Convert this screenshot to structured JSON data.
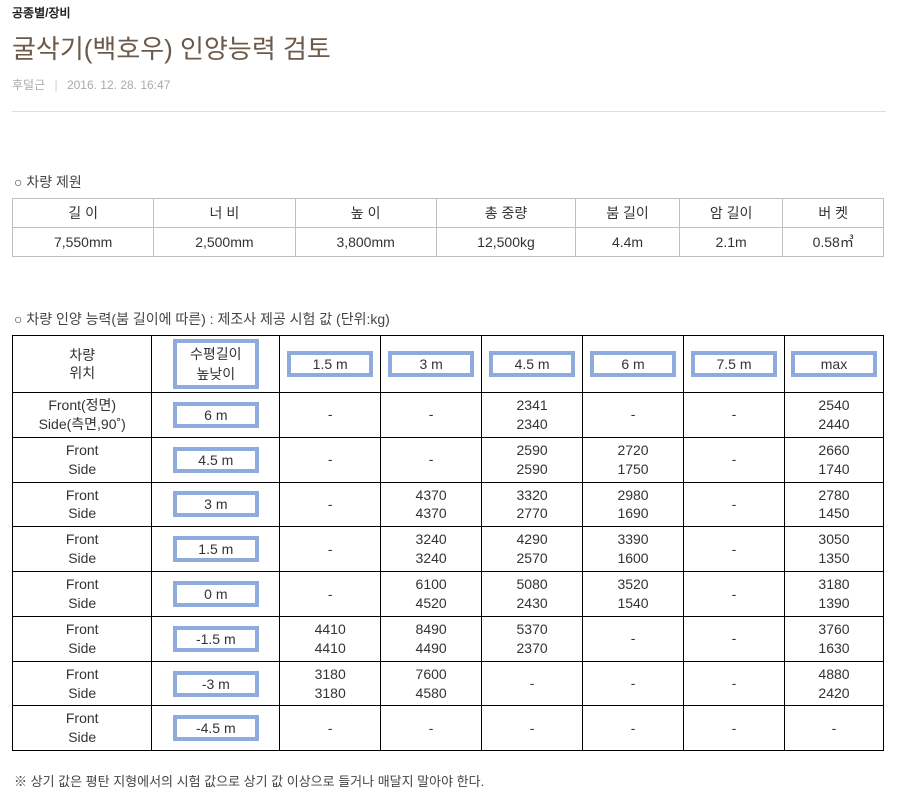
{
  "header": {
    "category": "공종별/장비",
    "title": "굴삭기(백호우) 인양능력 검토",
    "author": "후덜근",
    "timestamp": "2016. 12. 28. 16:47"
  },
  "spec": {
    "label": "○ 차량 제원",
    "columns": [
      "길 이",
      "너 비",
      "높 이",
      "총 중량",
      "붐 길이",
      "암 길이",
      "버 켓"
    ],
    "values": [
      "7,550mm",
      "2,500mm",
      "3,800mm",
      "12,500kg",
      "4.4m",
      "2.1m",
      "0.58㎥"
    ]
  },
  "lift": {
    "label": "○ 차량 인양 능력(붐 길이에 따른) : 제조사 제공 시험 값 (단위:kg)",
    "hdr_position": "차량\n위치",
    "hdr_height": "수평길이\n높낮이",
    "dist_headers": [
      "1.5 m",
      "3 m",
      "4.5 m",
      "6 m",
      "7.5 m",
      "max"
    ],
    "rows": [
      {
        "pos": "Front(정면)\nSide(측면,90˚)",
        "h": "6 m",
        "cells": [
          [
            "-",
            "-"
          ],
          [
            "-",
            "-"
          ],
          [
            "2341",
            "2340"
          ],
          [
            "-",
            "-"
          ],
          [
            "-",
            "-"
          ],
          [
            "2540",
            "2440"
          ]
        ]
      },
      {
        "pos": "Front\nSide",
        "h": "4.5 m",
        "cells": [
          [
            "-",
            "-"
          ],
          [
            "-",
            "-"
          ],
          [
            "2590",
            "2590"
          ],
          [
            "2720",
            "1750"
          ],
          [
            "-",
            "-"
          ],
          [
            "2660",
            "1740"
          ]
        ]
      },
      {
        "pos": "Front\nSide",
        "h": "3 m",
        "cells": [
          [
            "-",
            "-"
          ],
          [
            "4370",
            "4370"
          ],
          [
            "3320",
            "2770"
          ],
          [
            "2980",
            "1690"
          ],
          [
            "-",
            "-"
          ],
          [
            "2780",
            "1450"
          ]
        ]
      },
      {
        "pos": "Front\nSide",
        "h": "1.5 m",
        "cells": [
          [
            "-",
            "-"
          ],
          [
            "3240",
            "3240"
          ],
          [
            "4290",
            "2570"
          ],
          [
            "3390",
            "1600"
          ],
          [
            "-",
            "-"
          ],
          [
            "3050",
            "1350"
          ]
        ]
      },
      {
        "pos": "Front\nSide",
        "h": "0 m",
        "cells": [
          [
            "-",
            "-"
          ],
          [
            "6100",
            "4520"
          ],
          [
            "5080",
            "2430"
          ],
          [
            "3520",
            "1540"
          ],
          [
            "-",
            "-"
          ],
          [
            "3180",
            "1390"
          ]
        ]
      },
      {
        "pos": "Front\nSide",
        "h": "-1.5 m",
        "cells": [
          [
            "4410",
            "4410"
          ],
          [
            "8490",
            "4490"
          ],
          [
            "5370",
            "2370"
          ],
          [
            "-",
            "-"
          ],
          [
            "-",
            "-"
          ],
          [
            "3760",
            "1630"
          ]
        ]
      },
      {
        "pos": "Front\nSide",
        "h": "-3 m",
        "cells": [
          [
            "3180",
            "3180"
          ],
          [
            "7600",
            "4580"
          ],
          [
            "-",
            "-"
          ],
          [
            "-",
            "-"
          ],
          [
            "-",
            "-"
          ],
          [
            "4880",
            "2420"
          ]
        ]
      },
      {
        "pos": "Front\nSide",
        "h": "-4.5 m",
        "cells": [
          [
            "-",
            "-"
          ],
          [
            "-",
            "-"
          ],
          [
            "-",
            "-"
          ],
          [
            "-",
            "-"
          ],
          [
            "-",
            "-"
          ],
          [
            "-",
            "-"
          ]
        ]
      }
    ]
  },
  "footnote": "※ 상기 값은 평탄 지형에서의 시험 값으로 상기 값 이상으로 들거나 매달지 말아야 한다."
}
